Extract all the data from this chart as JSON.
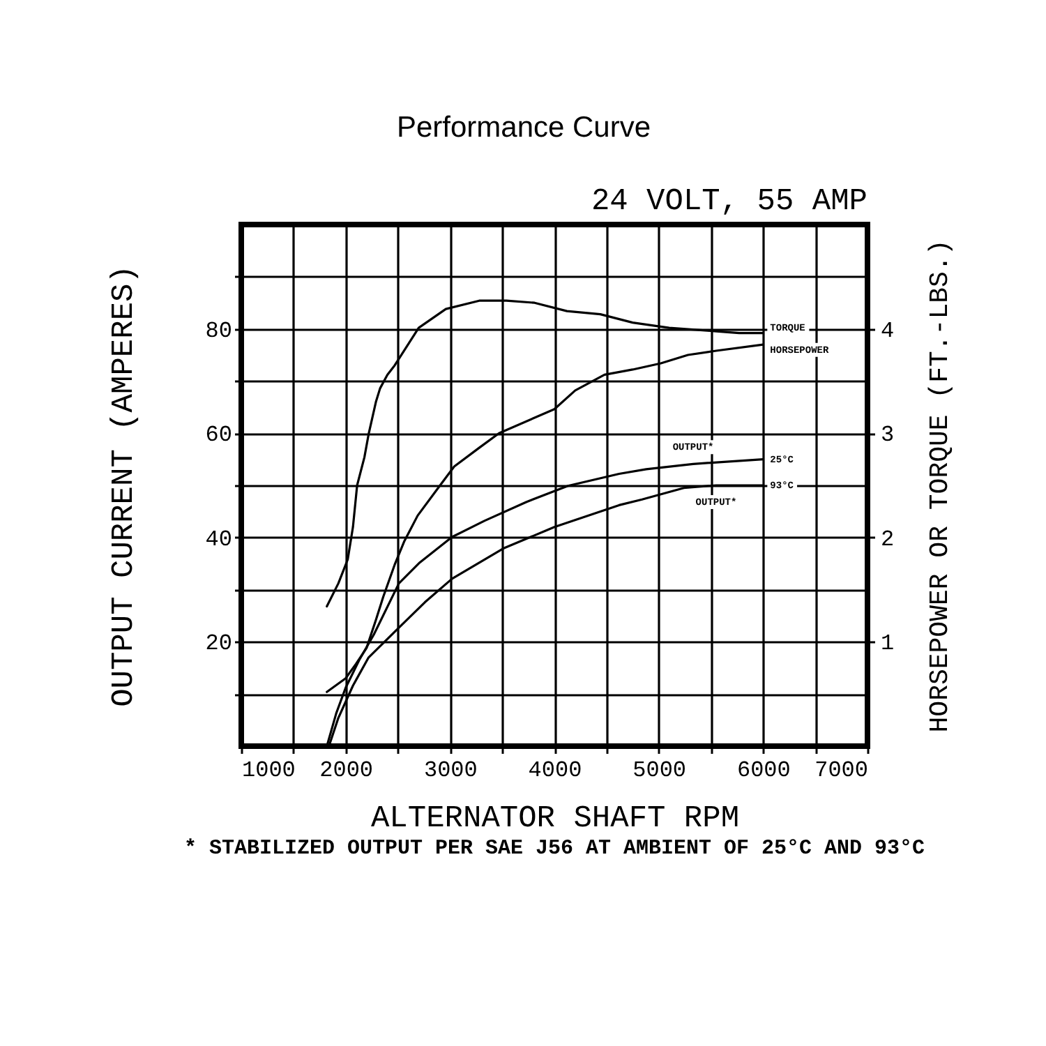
{
  "chart_data": {
    "type": "line",
    "title": "Performance Curve",
    "subtitle": "24 VOLT, 55 AMP",
    "xlabel": "ALTERNATOR SHAFT RPM",
    "ylabel": "OUTPUT CURRENT (AMPERES)",
    "y2label": "HORSEPOWER OR TORQUE (FT.-LBS.)",
    "annotations": [
      {
        "text": "OUTPUT*",
        "x": 5330,
        "y": 54.1
      },
      {
        "text": "OUTPUT*",
        "x": 5550,
        "y": 50
      },
      "* STABILIZED OUTPUT PER SAE J56 AT AMBIENT OF 25°C AND 93°C"
    ],
    "series": [
      {
        "name": "TORQUE",
        "color": "#000000",
        "axis": "y2",
        "x": [
          1820,
          1930,
          2020,
          2070,
          2110,
          2180,
          2220,
          2290,
          2330,
          2400,
          2470,
          2700,
          2960,
          3280,
          3540,
          3810,
          4120,
          4440,
          4750,
          5100,
          5510,
          5770,
          6000
        ],
        "values": [
          1.34,
          1.56,
          1.79,
          2.1,
          2.5,
          2.77,
          2.99,
          3.3,
          3.43,
          3.56,
          3.65,
          4.01,
          4.19,
          4.27,
          4.27,
          4.25,
          4.17,
          4.14,
          4.06,
          4.01,
          3.98,
          3.96,
          3.96
        ]
      },
      {
        "name": "HORSEPOWER",
        "color": "#000000",
        "axis": "y2",
        "x": [
          1820,
          2000,
          2100,
          2200,
          2290,
          2360,
          2470,
          2560,
          2690,
          2890,
          3040,
          3280,
          3470,
          4000,
          4200,
          4480,
          4750,
          5020,
          5280,
          5550,
          6000
        ],
        "values": [
          0.52,
          0.65,
          0.79,
          0.94,
          1.21,
          1.43,
          1.74,
          1.96,
          2.21,
          2.48,
          2.68,
          2.86,
          3.0,
          3.23,
          3.41,
          3.56,
          3.61,
          3.67,
          3.75,
          3.79,
          3.85
        ]
      },
      {
        "name": "25°C",
        "color": "#000000",
        "x": [
          1820,
          1910,
          2000,
          2130,
          2270,
          2510,
          2710,
          3020,
          3330,
          3730,
          4130,
          4620,
          4880,
          5330,
          6000
        ],
        "values": [
          0,
          6.3,
          11.2,
          16.5,
          21.4,
          31.2,
          35.2,
          40.1,
          43.2,
          46.8,
          49.9,
          52.2,
          53.1,
          54.1,
          55
        ]
      },
      {
        "name": "93°C",
        "color": "#000000",
        "x": [
          1840,
          1930,
          2070,
          2220,
          2510,
          2760,
          3020,
          3510,
          4000,
          4620,
          4840,
          5240,
          5550,
          6000
        ],
        "values": [
          0,
          5.4,
          11.6,
          17,
          22.7,
          27.6,
          32.1,
          37.9,
          42,
          46.2,
          47.3,
          49.5,
          50,
          50
        ]
      }
    ],
    "xlim": [
      1000,
      7000
    ],
    "ylim": [
      0,
      100
    ],
    "y2lim": [
      0,
      5
    ],
    "xticks": [
      1000,
      {
        "value": 1500,
        "label": null
      },
      2000,
      {
        "value": 2500,
        "label": null
      },
      3000,
      {
        "value": 3500,
        "label": null
      },
      4000,
      {
        "value": 4500,
        "label": null
      },
      5000,
      {
        "value": 5500,
        "label": null
      },
      6000,
      {
        "value": 6500,
        "label": null
      },
      7000
    ],
    "yticks": [
      {
        "value": 10,
        "label": null
      },
      20,
      {
        "value": 30,
        "label": null
      },
      40,
      {
        "value": 50,
        "label": null
      },
      60,
      {
        "value": 70,
        "label": null
      },
      80,
      {
        "value": 90,
        "label": null
      }
    ],
    "y2ticks": [
      1,
      2,
      3,
      4
    ],
    "grid": true,
    "line_style": "solid"
  }
}
